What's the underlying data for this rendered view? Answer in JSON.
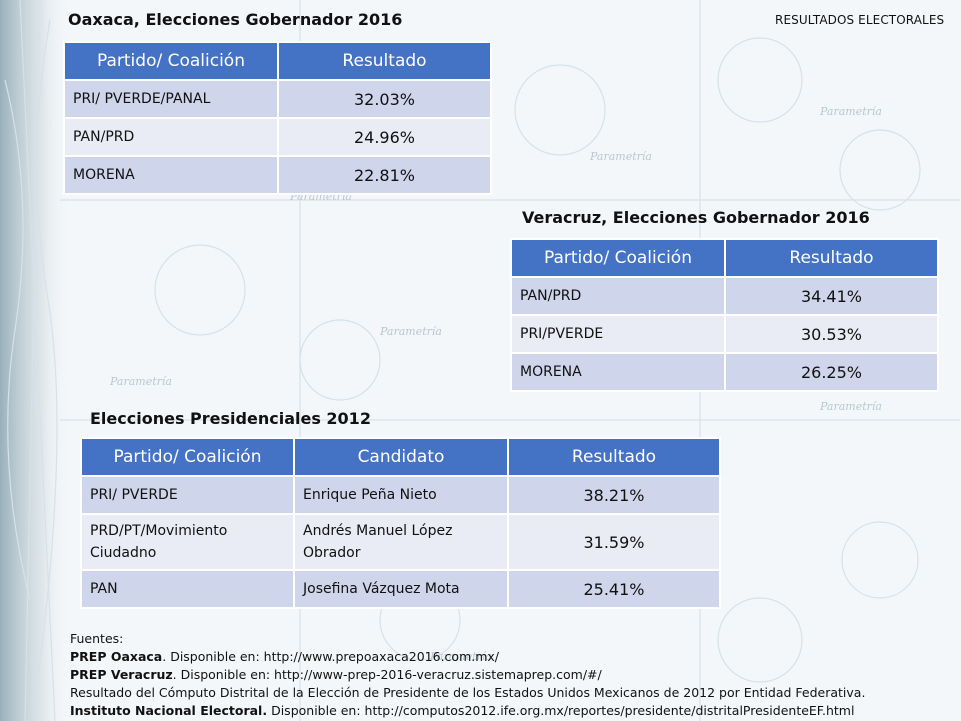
{
  "header": {
    "section": "RESULTADOS ELECTORALES"
  },
  "colors": {
    "header_blue": "#4472c4",
    "row_dark": "#cfd5ea",
    "row_light": "#e9ebf5"
  },
  "oaxaca": {
    "title": "Oaxaca, Elecciones Gobernador 2016",
    "col_party": "Partido/ Coalición",
    "col_result": "Resultado",
    "rows": [
      {
        "party": "PRI/ PVERDE/PANAL",
        "result": "32.03%"
      },
      {
        "party": "PAN/PRD",
        "result": "24.96%"
      },
      {
        "party": "MORENA",
        "result": "22.81%"
      }
    ]
  },
  "veracruz": {
    "title": "Veracruz, Elecciones Gobernador 2016",
    "col_party": "Partido/ Coalición",
    "col_result": "Resultado",
    "rows": [
      {
        "party": "PAN/PRD",
        "result": "34.41%"
      },
      {
        "party": "PRI/PVERDE",
        "result": "30.53%"
      },
      {
        "party": "MORENA",
        "result": "26.25%"
      }
    ]
  },
  "presidential": {
    "title": "Elecciones Presidenciales 2012",
    "col_party": "Partido/ Coalición",
    "col_candidate": "Candidato",
    "col_result": "Resultado",
    "rows": [
      {
        "party": "PRI/ PVERDE",
        "candidate": "Enrique Peña Nieto",
        "result": "38.21%"
      },
      {
        "party": "PRD/PT/Movimiento Ciudadno",
        "candidate": "Andrés Manuel López Obrador",
        "result": "31.59%"
      },
      {
        "party": "PAN",
        "candidate": "Josefina Vázquez Mota",
        "result": "25.41%"
      }
    ]
  },
  "sources": {
    "heading": "Fuentes:",
    "line1_bold": "PREP Oaxaca",
    "line1_rest": ". Disponible en: http://www.prepoaxaca2016.com.mx/",
    "line2_bold": "PREP Veracruz",
    "line2_rest": ". Disponible en: http://www-prep-2016-veracruz.sistemaprep.com/#/",
    "line3": "Resultado del Cómputo Distrital de la Elección de Presidente de los Estados Unidos Mexicanos de 2012 por Entidad Federativa.",
    "line4_bold": "Instituto Nacional Electoral.",
    "line4_rest": " Disponible en: http://computos2012.ife.org.mx/reportes/presidente/distritalPresidenteEF.html"
  }
}
